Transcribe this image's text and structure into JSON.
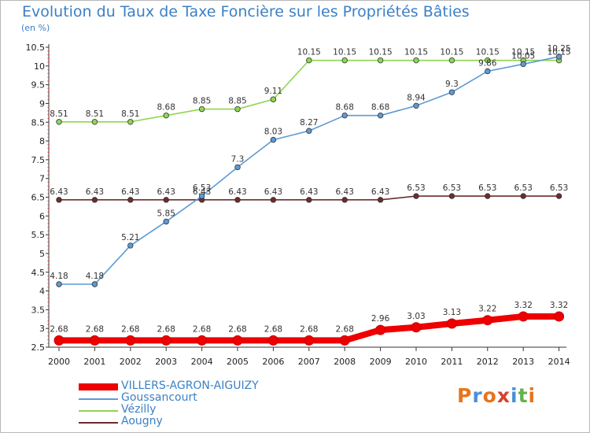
{
  "chart_data": {
    "type": "line",
    "title": "Evolution du Taux de Taxe Foncière sur les Propriétés Bâties",
    "ylabel": "(en %)",
    "x": [
      "2000",
      "2001",
      "2002",
      "2003",
      "2004",
      "2005",
      "2006",
      "2007",
      "2008",
      "2009",
      "2010",
      "2011",
      "2012",
      "2013",
      "2014"
    ],
    "yticks": [
      "2.5",
      "3",
      "3.5",
      "4",
      "4.5",
      "5",
      "5.5",
      "6",
      "6.5",
      "7",
      "7.5",
      "8",
      "8.5",
      "9",
      "9.5",
      "10",
      "10.5"
    ],
    "ylim": [
      2.5,
      10.5
    ],
    "grid": false,
    "legend_position": "bottom-left",
    "series": [
      {
        "name": "VILLERS-AGRON-AIGUIZY",
        "color": "#ee0000",
        "labels": [
          "2.68",
          "2.68",
          "2.68",
          "2.68",
          "2.68",
          "2.68",
          "2.68",
          "2.68",
          "2.68",
          "2.96",
          "3.03",
          "3.13",
          "3.22",
          "3.32",
          "3.32"
        ],
        "values": [
          2.68,
          2.68,
          2.68,
          2.68,
          2.68,
          2.68,
          2.68,
          2.68,
          2.68,
          2.96,
          3.03,
          3.13,
          3.22,
          3.32,
          3.32
        ]
      },
      {
        "name": "Goussancourt",
        "color": "#5d9ad6",
        "labels": [
          "4.18",
          "4.18",
          "5.21",
          "5.85",
          "6.53",
          "7.3",
          "8.03",
          "8.27",
          "8.68",
          "8.68",
          "8.94",
          "9.3",
          "9.86",
          "10.05",
          "10.25"
        ],
        "values": [
          4.18,
          4.18,
          5.21,
          5.85,
          6.53,
          7.3,
          8.03,
          8.27,
          8.68,
          8.68,
          8.94,
          9.3,
          9.86,
          10.05,
          10.25
        ]
      },
      {
        "name": "Vézilly",
        "color": "#8fd651",
        "labels": [
          "8.51",
          "8.51",
          "8.51",
          "8.68",
          "8.85",
          "8.85",
          "9.11",
          "10.15",
          "10.15",
          "10.15",
          "10.15",
          "10.15",
          "10.15",
          "10.15",
          "10.15"
        ],
        "values": [
          8.51,
          8.51,
          8.51,
          8.68,
          8.85,
          8.85,
          9.11,
          10.15,
          10.15,
          10.15,
          10.15,
          10.15,
          10.15,
          10.15,
          10.15
        ]
      },
      {
        "name": "Aougny",
        "color": "#6b2d2d",
        "labels": [
          "6.43",
          "6.43",
          "6.43",
          "6.43",
          "6.43",
          "6.43",
          "6.43",
          "6.43",
          "6.43",
          "6.43",
          "6.53",
          "6.53",
          "6.53",
          "6.53",
          "6.53"
        ],
        "values": [
          6.43,
          6.43,
          6.43,
          6.43,
          6.43,
          6.43,
          6.43,
          6.43,
          6.43,
          6.43,
          6.53,
          6.53,
          6.53,
          6.53,
          6.53
        ]
      }
    ]
  },
  "logo": {
    "text": "Proxiti",
    "colors": [
      "#e8741c",
      "#4a90d9",
      "#e8741c",
      "#d9402a",
      "#4a90d9",
      "#62b24e",
      "#e8741c"
    ]
  }
}
